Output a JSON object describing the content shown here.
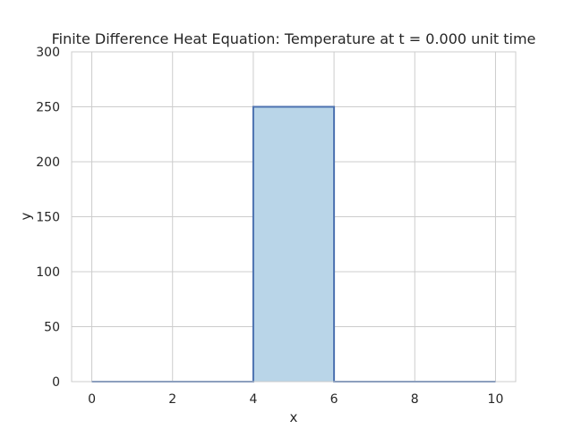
{
  "chart_data": {
    "type": "area",
    "title": "Finite Difference Heat Equation: Temperature at t = 0.000 unit time",
    "xlabel": "x",
    "ylabel": "y",
    "xlim": [
      -0.5,
      10.5
    ],
    "ylim": [
      0,
      300
    ],
    "xticks": [
      0,
      2,
      4,
      6,
      8,
      10
    ],
    "yticks": [
      0,
      50,
      100,
      150,
      200,
      250,
      300
    ],
    "xtick_labels": [
      "0",
      "2",
      "4",
      "6",
      "8",
      "10"
    ],
    "ytick_labels": [
      "0",
      "50",
      "100",
      "150",
      "200",
      "250",
      "300"
    ],
    "grid": true,
    "series": [
      {
        "x": [
          0,
          4,
          4,
          6,
          6,
          10
        ],
        "y": [
          0,
          0,
          250,
          250,
          0,
          0
        ],
        "line_color": "#4c72b0",
        "fill_color": "#b9d5e8"
      }
    ]
  }
}
